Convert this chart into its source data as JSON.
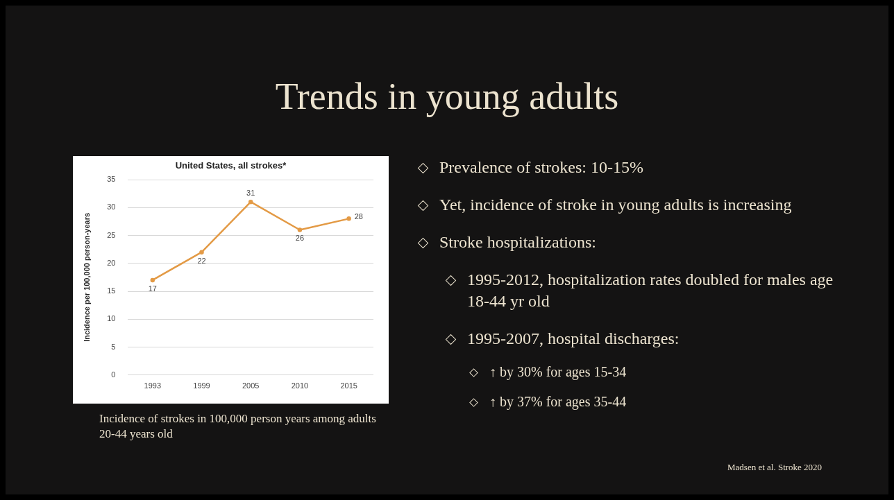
{
  "chart_data": {
    "type": "line",
    "title": "Trends in young adults",
    "subtitle": "United States, all strokes*",
    "ylabel": "Incidence per 100,000 person-years",
    "categories": [
      "1993",
      "1999",
      "2005",
      "2010",
      "2015"
    ],
    "series": [
      {
        "color": "#e39a45",
        "values": [
          17,
          22,
          31,
          26,
          28
        ]
      }
    ],
    "ylim": [
      0,
      35
    ],
    "yticks": [
      0,
      5,
      10,
      15,
      20,
      25,
      30,
      35
    ],
    "grid": "y",
    "legend": false,
    "marker": "circle",
    "line_style": "solid",
    "data_labels": true,
    "annotations": [
      "Incidence of strokes in 100,000 person years among adults 20-44 years old",
      "Prevalence of strokes: 10-15%",
      "Yet, incidence of stroke in young adults is increasing",
      "Stroke hospitalizations:",
      "1995-2012, hospitalization rates doubled for males age 18-44 yr old",
      "1995-2007, hospital discharges:",
      "↑ by 30% for ages 15-34",
      "↑ by 37% for ages 35-44",
      "Madsen et al. Stroke 2020"
    ]
  }
}
